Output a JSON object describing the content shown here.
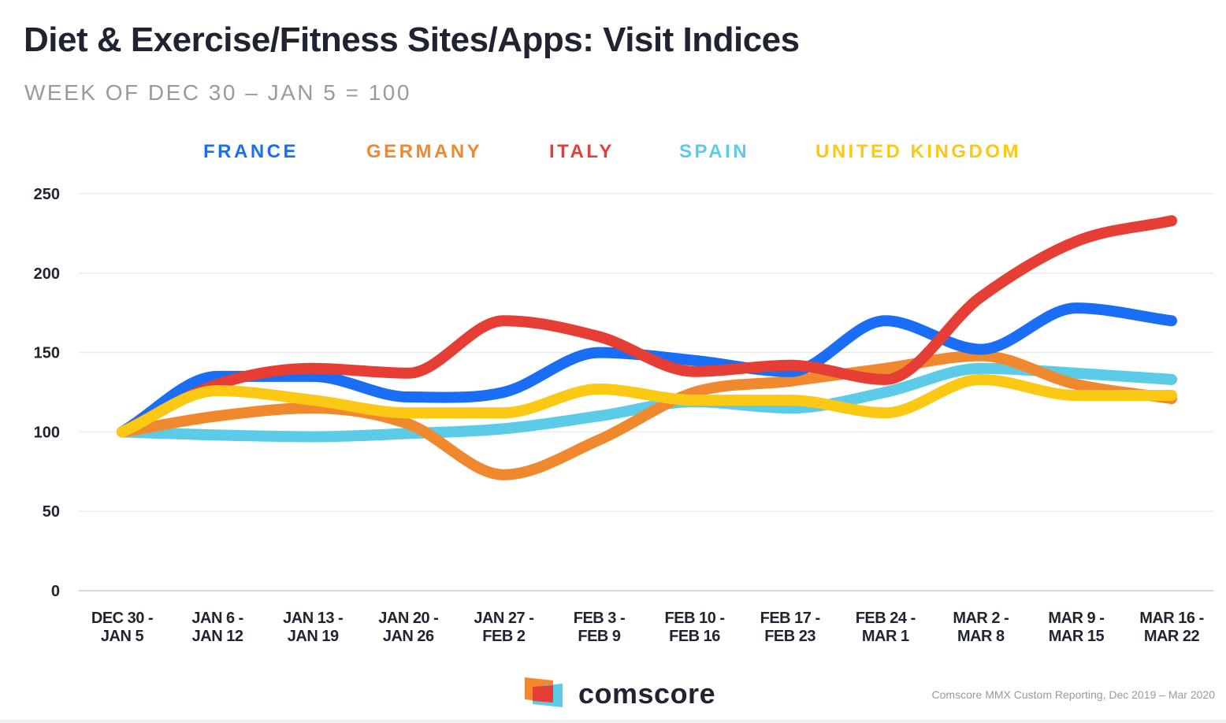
{
  "title": "Diet & Exercise/Fitness Sites/Apps: Visit Indices",
  "subtitle": "WEEK OF DEC 30 – JAN 5 = 100",
  "source": "Comscore MMX Custom Reporting, Dec 2019 – Mar 2020",
  "logo_text": "comscore",
  "chart_data": {
    "type": "line",
    "ylim": [
      0,
      250
    ],
    "yticks": [
      0,
      50,
      100,
      150,
      200,
      250
    ],
    "grid": true,
    "legend_position": "top",
    "categories": [
      [
        "DEC 30 -",
        "JAN 5"
      ],
      [
        "JAN 6 -",
        "JAN 12"
      ],
      [
        "JAN 13 -",
        "JAN 19"
      ],
      [
        "JAN 20 -",
        "JAN 26"
      ],
      [
        "JAN 27 -",
        "FEB 2"
      ],
      [
        "FEB 3 -",
        "FEB 9"
      ],
      [
        "FEB 10 -",
        "FEB 16"
      ],
      [
        "FEB 17 -",
        "FEB 23"
      ],
      [
        "FEB 24 -",
        "MAR 1"
      ],
      [
        "MAR 2 -",
        "MAR 8"
      ],
      [
        "MAR 9 -",
        "MAR 15"
      ],
      [
        "MAR 16 -",
        "MAR 22"
      ]
    ],
    "series": [
      {
        "name": "FRANCE",
        "color": "#1a6ef5",
        "values": [
          100,
          135,
          135,
          122,
          125,
          150,
          145,
          138,
          170,
          152,
          178,
          170
        ]
      },
      {
        "name": "GERMANY",
        "color": "#f0892e",
        "values": [
          100,
          110,
          115,
          105,
          73,
          95,
          125,
          132,
          140,
          148,
          130,
          121
        ]
      },
      {
        "name": "ITALY",
        "color": "#e63e34",
        "values": [
          100,
          130,
          140,
          137,
          170,
          160,
          138,
          142,
          133,
          185,
          220,
          233
        ]
      },
      {
        "name": "SPAIN",
        "color": "#5ccbe8",
        "values": [
          100,
          98,
          97,
          99,
          102,
          110,
          119,
          115,
          125,
          140,
          137,
          133
        ]
      },
      {
        "name": "UNITED KINGDOM",
        "color": "#fbc913",
        "values": [
          100,
          126,
          120,
          112,
          112,
          127,
          120,
          120,
          112,
          133,
          123,
          123
        ]
      }
    ]
  }
}
